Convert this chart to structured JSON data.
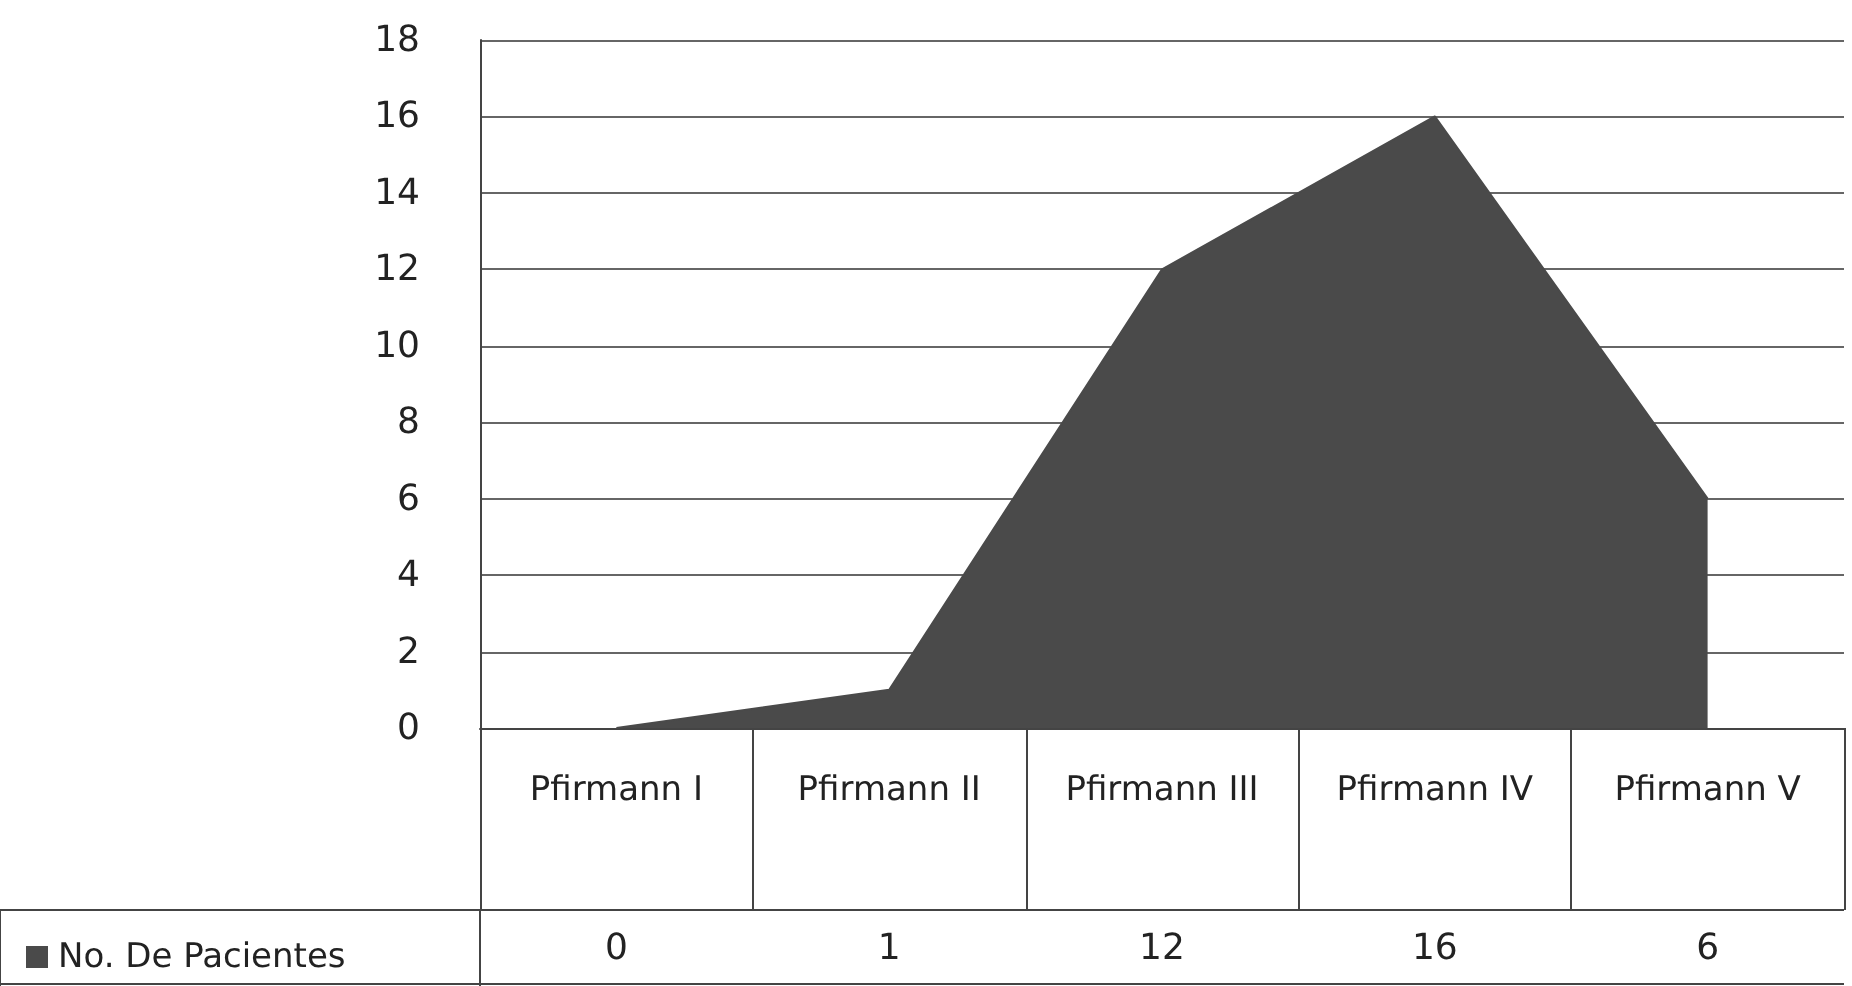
{
  "chart_data": {
    "type": "area",
    "categories": [
      "Pfirmann I",
      "Pfirmann II",
      "Pfirmann III",
      "Pfirmann IV",
      "Pfirmann V"
    ],
    "series": [
      {
        "name": "No. De Pacientes",
        "color": "#4a4a4a",
        "values": [
          0,
          1,
          12,
          16,
          6
        ]
      }
    ],
    "ylim": [
      0,
      18
    ],
    "yticks": [
      0,
      2,
      4,
      6,
      8,
      10,
      12,
      14,
      16,
      18
    ],
    "grid": "y",
    "legend": "bottom left",
    "data_labels": true
  }
}
